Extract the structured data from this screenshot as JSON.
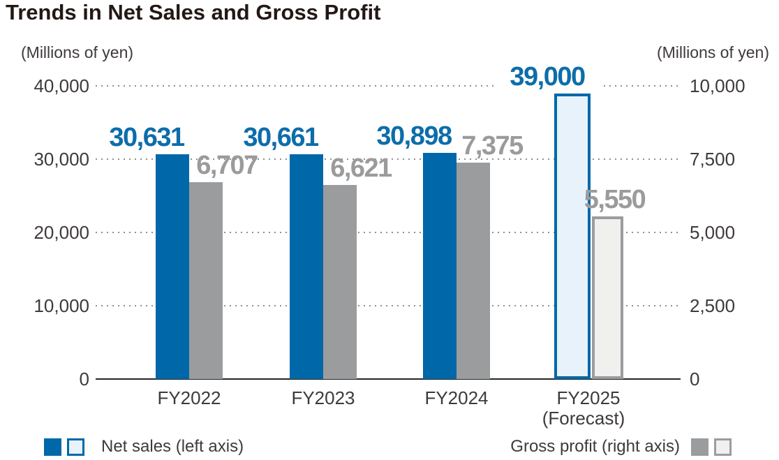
{
  "title": "Trends in Net Sales and Gross Profit",
  "left_axis": {
    "unit": "(Millions of yen)",
    "max": 40000,
    "ticks": [
      {
        "value": 40000,
        "label": "40,000"
      },
      {
        "value": 30000,
        "label": "30,000"
      },
      {
        "value": 20000,
        "label": "20,000"
      },
      {
        "value": 10000,
        "label": "10,000"
      },
      {
        "value": 0,
        "label": "0"
      }
    ]
  },
  "right_axis": {
    "unit": "(Millions of yen)",
    "max": 10000,
    "ticks": [
      {
        "value": 10000,
        "label": "10,000"
      },
      {
        "value": 7500,
        "label": "7,500"
      },
      {
        "value": 5000,
        "label": "5,000"
      },
      {
        "value": 2500,
        "label": "2,500"
      },
      {
        "value": 0,
        "label": "0"
      }
    ]
  },
  "legend": {
    "net_sales": "Net sales (left axis)",
    "gross_profit": "Gross profit (right axis)"
  },
  "colors": {
    "net_sales": "#0068a8",
    "net_sales_forecast_fill": "#e7f2fb",
    "net_sales_label": "#0d6daa",
    "gross_profit": "#9a9c9e",
    "gross_profit_forecast_fill": "#f0f0ef",
    "gross_profit_label": "#9b9b9c",
    "axis_text": "#3e3a39",
    "title_text": "#231815",
    "gridline": "#8f8f8f",
    "baseline": "#262626"
  },
  "chart_data": {
    "type": "bar",
    "title": "Trends in Net Sales and Gross Profit",
    "categories": [
      "FY2022",
      "FY2023",
      "FY2024",
      "FY2025"
    ],
    "category_sublabels": [
      "",
      "",
      "",
      "(Forecast)"
    ],
    "forecast_index": 3,
    "series": [
      {
        "name": "Net sales (left axis)",
        "axis": "left",
        "values": [
          30631,
          30661,
          30898,
          39000
        ],
        "labels": [
          "30,631",
          "30,661",
          "30,898",
          "39,000"
        ]
      },
      {
        "name": "Gross profit (right axis)",
        "axis": "right",
        "values": [
          6707,
          6621,
          7375,
          5550
        ],
        "labels": [
          "6,707",
          "6,621",
          "7,375",
          "5,550"
        ]
      }
    ],
    "left_ylim": [
      0,
      40000
    ],
    "right_ylim": [
      0,
      10000
    ],
    "grid": "dotted horizontal",
    "legend_position": "bottom"
  }
}
